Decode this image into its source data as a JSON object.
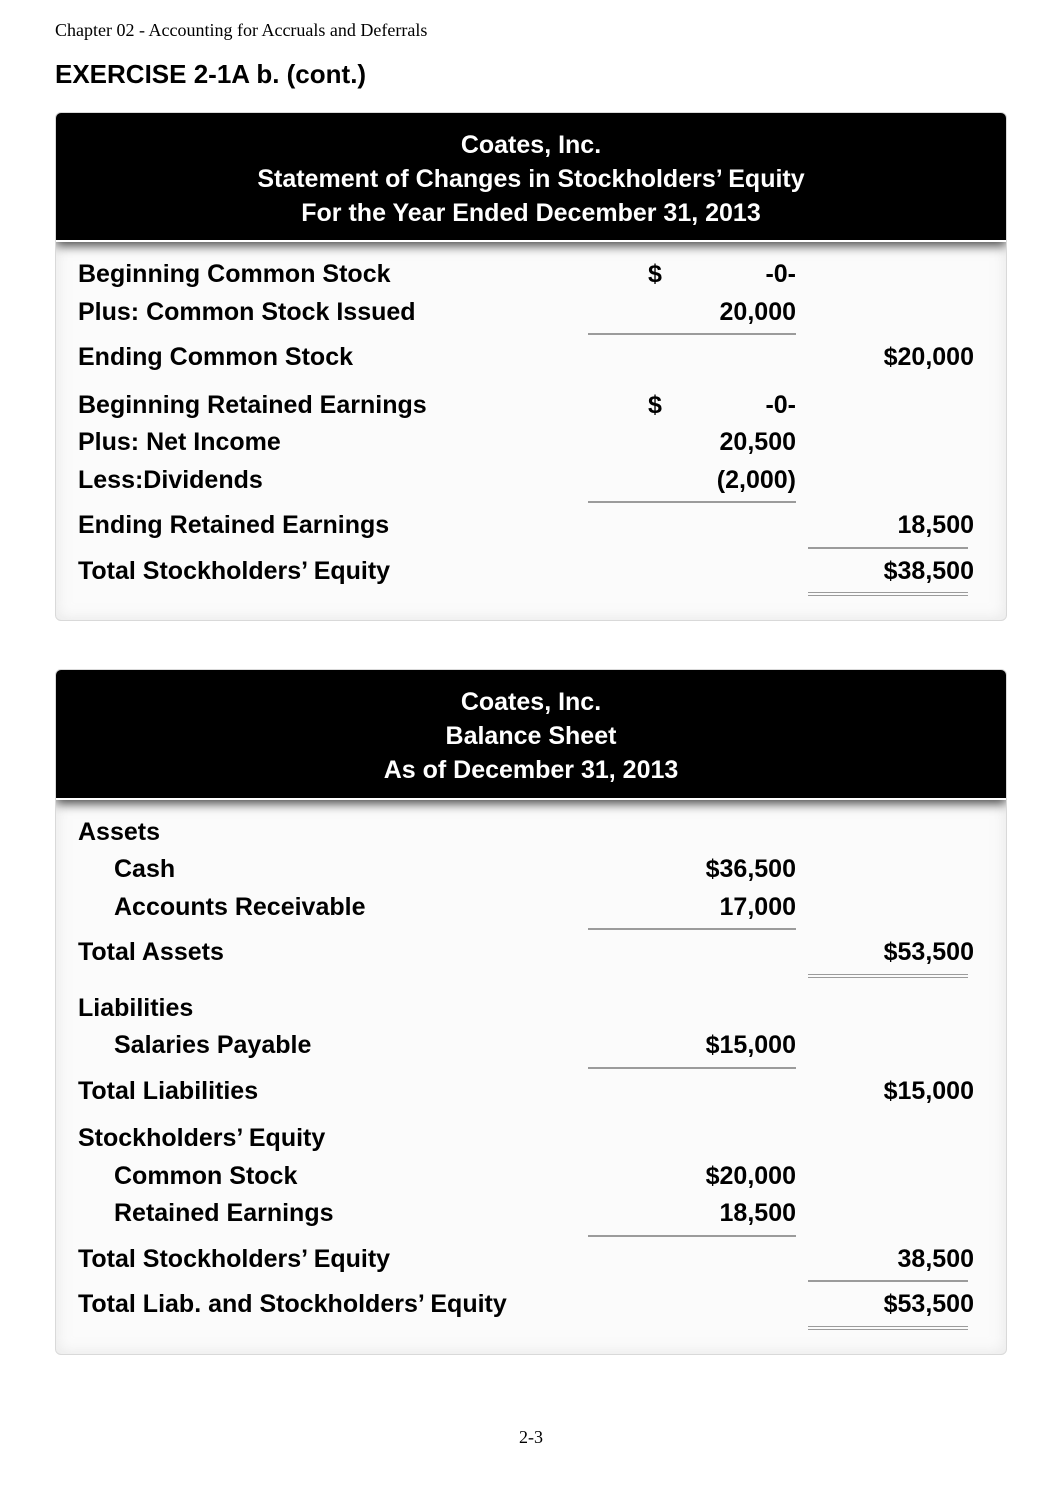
{
  "chapter_header": "Chapter 02 - Accounting for Accruals and Deferrals",
  "exercise_title": "EXERCISE 2-1A b. (cont.)",
  "page_number": "2-3",
  "stmt1": {
    "header_l1": "Coates, Inc.",
    "header_l2": "Statement of Changes in Stockholders’ Equity",
    "header_l3": "For the Year Ended December 31, 2013",
    "rows": {
      "beg_cs_label": "Beginning Common Stock",
      "beg_cs_dollar": "$",
      "beg_cs_val": "-0-",
      "plus_cs_label": "Plus: Common Stock Issued",
      "plus_cs_val": "20,000",
      "end_cs_label": "Ending Common Stock",
      "end_cs_val": "$20,000",
      "beg_re_label": "Beginning Retained Earnings",
      "beg_re_dollar": "$",
      "beg_re_val": "-0-",
      "plus_ni_label": "Plus: Net Income",
      "plus_ni_val": "20,500",
      "less_div_label": "Less:Dividends",
      "less_div_val": "(2,000)",
      "end_re_label": "Ending Retained Earnings",
      "end_re_val": "18,500",
      "total_se_label": "Total Stockholders’ Equity",
      "total_se_val": "$38,500"
    }
  },
  "stmt2": {
    "header_l1": "Coates, Inc.",
    "header_l2": "Balance Sheet",
    "header_l3": "As of December 31, 2013",
    "rows": {
      "assets_hdr": "Assets",
      "cash_label": "Cash",
      "cash_val": "$36,500",
      "ar_label": "Accounts Receivable",
      "ar_val": "17,000",
      "total_assets_label": "Total Assets",
      "total_assets_val": "$53,500",
      "liab_hdr": "Liabilities",
      "sal_pay_label": "Salaries Payable",
      "sal_pay_val": "$15,000",
      "total_liab_label": "Total Liabilities",
      "total_liab_val": "$15,000",
      "se_hdr": "Stockholders’ Equity",
      "cs_label": "Common Stock",
      "cs_val": "$20,000",
      "re_label": "Retained Earnings",
      "re_val": "18,500",
      "total_se_label": "Total Stockholders’ Equity",
      "total_se_val": "38,500",
      "total_lse_label": "Total Liab. and Stockholders’ Equity",
      "total_lse_val": "$53,500"
    }
  }
}
